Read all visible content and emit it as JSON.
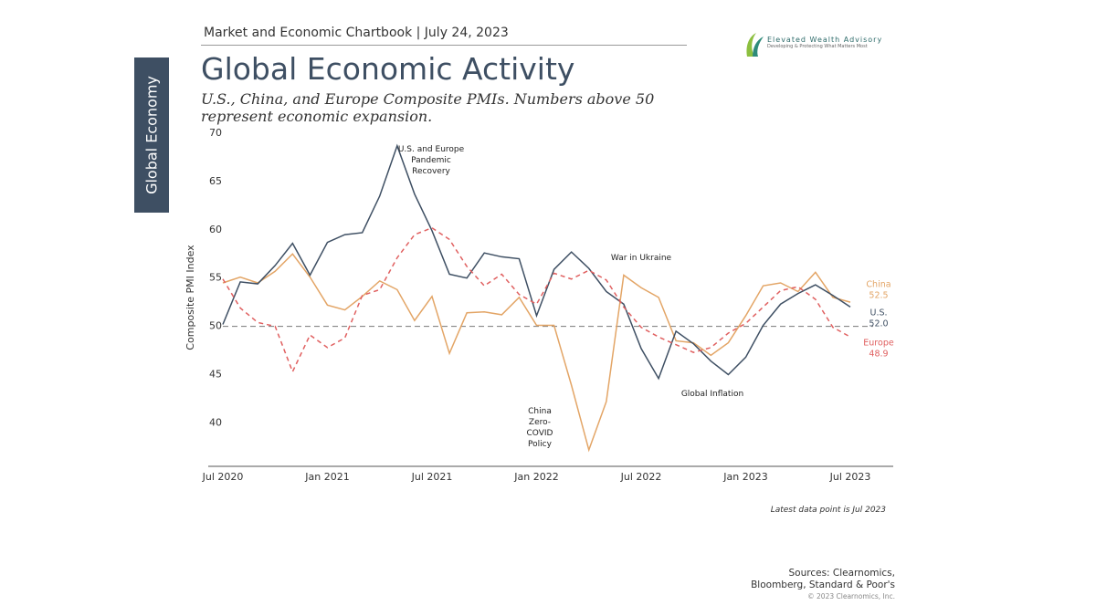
{
  "header": {
    "chartbook": "Market and Economic Chartbook | July 24, 2023",
    "section": "Global Economy",
    "logo_name": "Elevated Wealth Advisory",
    "logo_tagline": "Developing & Protecting What Matters Most"
  },
  "chart_data": {
    "type": "line",
    "title": "Global Economic Activity",
    "subtitle": "U.S., China, and Europe Composite PMIs. Numbers above 50 represent economic expansion.",
    "y_label": "Composite PMI Index",
    "categories": [
      "Jul 2020",
      null,
      null,
      null,
      null,
      null,
      "Jan 2021",
      null,
      null,
      null,
      null,
      null,
      "Jul 2021",
      null,
      null,
      null,
      null,
      null,
      "Jan 2022",
      null,
      null,
      null,
      null,
      null,
      "Jul 2022",
      null,
      null,
      null,
      null,
      null,
      "Jan 2023",
      null,
      null,
      null,
      null,
      null,
      "Jul 2023"
    ],
    "series": [
      {
        "name": "China",
        "color": "#e3a566",
        "dash": false,
        "values": [
          54.5,
          55.1,
          54.5,
          55.7,
          57.5,
          55.1,
          52.2,
          51.7,
          53.1,
          54.7,
          53.8,
          50.6,
          53.1,
          47.2,
          51.4,
          51.5,
          51.2,
          53.0,
          50.1,
          50.1,
          43.9,
          37.2,
          42.2,
          55.3,
          54.0,
          53.0,
          48.5,
          48.3,
          47.0,
          48.3,
          51.1,
          54.2,
          54.5,
          53.6,
          55.6,
          53.0,
          52.5
        ]
      },
      {
        "name": "U.S.",
        "color": "#3e4f63",
        "dash": false,
        "values": [
          50.2,
          54.6,
          54.4,
          56.3,
          58.6,
          55.3,
          58.7,
          59.5,
          59.7,
          63.5,
          68.7,
          63.7,
          59.9,
          55.4,
          55.0,
          57.6,
          57.2,
          57.0,
          51.1,
          55.9,
          57.7,
          56.0,
          53.6,
          52.3,
          47.7,
          44.6,
          49.5,
          48.2,
          46.4,
          45.0,
          46.8,
          50.1,
          52.3,
          53.4,
          54.3,
          53.2,
          52.0
        ],
        "value_labels": [
          null,
          null,
          null,
          null,
          null,
          null,
          null,
          null,
          null,
          null,
          null,
          null,
          null,
          null,
          null,
          null,
          null,
          null,
          null,
          null,
          null,
          null,
          null,
          null,
          null,
          null,
          null,
          null,
          null,
          null,
          null,
          null,
          null,
          null,
          null,
          null,
          "52.0"
        ]
      },
      {
        "name": "Europe",
        "color": "#e06060",
        "dash": true,
        "values": [
          54.9,
          51.9,
          50.4,
          50.0,
          45.3,
          49.1,
          47.8,
          48.8,
          53.2,
          53.8,
          57.1,
          59.5,
          60.2,
          59.0,
          56.2,
          54.2,
          55.4,
          53.3,
          52.3,
          55.5,
          54.9,
          55.8,
          54.8,
          52.0,
          49.9,
          48.9,
          48.1,
          47.3,
          47.8,
          49.3,
          50.3,
          52.0,
          53.7,
          54.1,
          52.8,
          49.9,
          48.9
        ]
      }
    ],
    "ylim": [
      35.5,
      70
    ],
    "yticks": [
      40,
      45,
      50,
      55,
      60,
      65,
      70
    ],
    "reference_line": 50,
    "grid": false,
    "annotations": [
      "U.S. and Europe Pandemic Recovery",
      "War in Ukraine",
      "China Zero-COVID Policy",
      "Global Inflation"
    ],
    "note": "Latest data point is Jul 2023"
  },
  "footer": {
    "sources": "Sources: Clearnomics, Bloomberg, Standard & Poor's",
    "copyright": "© 2023 Clearnomics, Inc."
  }
}
